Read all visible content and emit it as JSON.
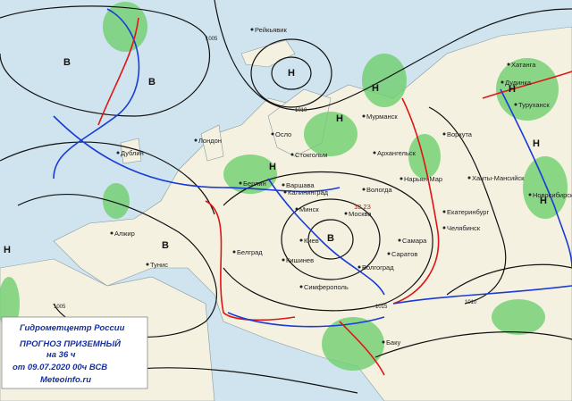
{
  "info_box": {
    "lines": [
      "Гидрометцентр России",
      "ПРОГНОЗ ПРИЗЕМНЫЙ",
      "на 36 ч",
      "от 09.07.2020 00ч ВСВ",
      "Meteoinfo.ru"
    ]
  },
  "pressure_centers": [
    "В",
    "В",
    "В",
    "В",
    "Н",
    "Н",
    "Н",
    "Н",
    "Н",
    "Н",
    "Н",
    "Н"
  ],
  "cities": [
    "Рейкьявик",
    "Лондон",
    "Осло",
    "Стокгольм",
    "Мурманск",
    "Воркута",
    "Архангельск",
    "Нарьян-Мар",
    "Берлин",
    "Варшава",
    "Калининград",
    "Минск",
    "Вологда",
    "Москва",
    "Киев",
    "Белград",
    "Кишинев",
    "Симферополь",
    "Самара",
    "Саратов",
    "Волгоград",
    "Екатеринбург",
    "Челябинск",
    "Ханты-Мансийск",
    "Хатанга",
    "Дудинка",
    "Туруханск",
    "Новосибирск",
    "Алжир",
    "Тунис",
    "Баку",
    "Дублин"
  ],
  "moscow_temp": "18.23",
  "isobar_labels": [
    "1005",
    "1010",
    "1015",
    "1010",
    "1005"
  ]
}
